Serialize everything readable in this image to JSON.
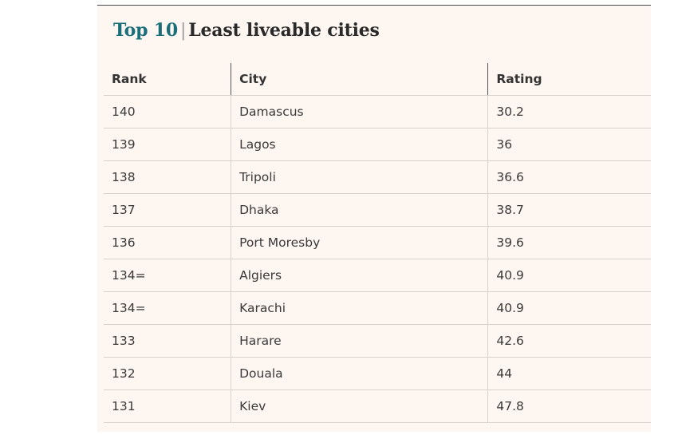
{
  "title": {
    "accent": "Top 10",
    "separator": "|",
    "main": "Least liveable cities"
  },
  "table": {
    "columns": [
      "Rank",
      "City",
      "Rating"
    ],
    "rows": [
      {
        "rank": "140",
        "city": "Damascus",
        "rating": "30.2"
      },
      {
        "rank": "139",
        "city": "Lagos",
        "rating": "36"
      },
      {
        "rank": "138",
        "city": "Tripoli",
        "rating": "36.6"
      },
      {
        "rank": "137",
        "city": "Dhaka",
        "rating": "38.7"
      },
      {
        "rank": "136",
        "city": "Port Moresby",
        "rating": "39.6"
      },
      {
        "rank": "134=",
        "city": "Algiers",
        "rating": "40.9"
      },
      {
        "rank": "134=",
        "city": "Karachi",
        "rating": "40.9"
      },
      {
        "rank": "133",
        "city": "Harare",
        "rating": "42.6"
      },
      {
        "rank": "132",
        "city": "Douala",
        "rating": "44"
      },
      {
        "rank": "131",
        "city": "Kiev",
        "rating": "47.8"
      }
    ]
  }
}
